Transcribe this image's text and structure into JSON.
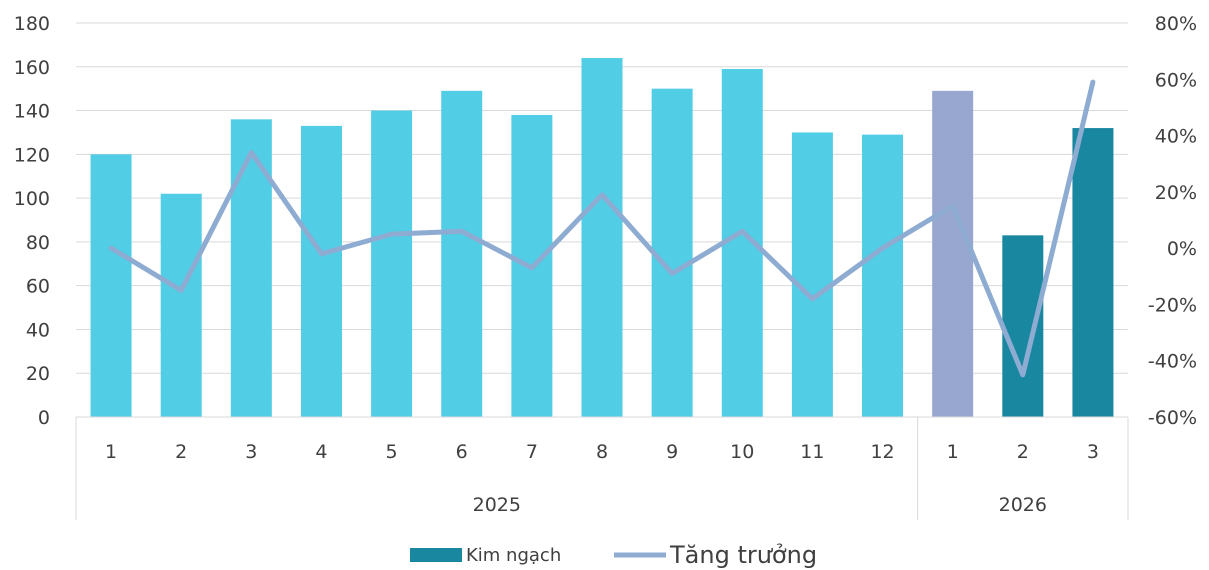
{
  "chart_data": {
    "type": "bar",
    "title": "",
    "categories": [
      "1",
      "2",
      "3",
      "4",
      "5",
      "6",
      "7",
      "8",
      "9",
      "10",
      "11",
      "12",
      "1",
      "2",
      "3"
    ],
    "groups": [
      {
        "label": "2025",
        "count": 12
      },
      {
        "label": "2026",
        "count": 3
      }
    ],
    "series": [
      {
        "name": "Kim ngạch",
        "type": "bar",
        "axis": "left",
        "values": [
          120,
          102,
          136,
          133,
          140,
          149,
          138,
          164,
          150,
          159,
          130,
          129,
          149,
          83,
          132
        ],
        "colors": [
          "#52cde6",
          "#52cde6",
          "#52cde6",
          "#52cde6",
          "#52cde6",
          "#52cde6",
          "#52cde6",
          "#52cde6",
          "#52cde6",
          "#52cde6",
          "#52cde6",
          "#52cde6",
          "#97a7cf",
          "#1a87a1",
          "#1a87a1"
        ]
      },
      {
        "name": "Tăng trưởng",
        "type": "line",
        "axis": "right",
        "color": "#8eabd1",
        "values": [
          0,
          -15,
          34,
          -2,
          5,
          6,
          -7,
          19,
          -9,
          6,
          -18,
          0,
          15,
          -45,
          59
        ]
      }
    ],
    "y_left": {
      "min": 0,
      "max": 180,
      "step": 20,
      "ticks": [
        "0",
        "20",
        "40",
        "60",
        "80",
        "100",
        "120",
        "140",
        "160",
        "180"
      ]
    },
    "y_right": {
      "min": -60,
      "max": 80,
      "step": 20,
      "ticks": [
        "-60%",
        "-40%",
        "-20%",
        "0%",
        "20%",
        "40%",
        "60%",
        "80%"
      ]
    },
    "grid": true,
    "legend": {
      "position": "bottom-center",
      "items": [
        {
          "label": "Kim ngạch",
          "color": "#1a87a1",
          "kind": "bar"
        },
        {
          "label": "Tăng trưởng",
          "color": "#8eabd1",
          "kind": "line"
        }
      ]
    }
  }
}
